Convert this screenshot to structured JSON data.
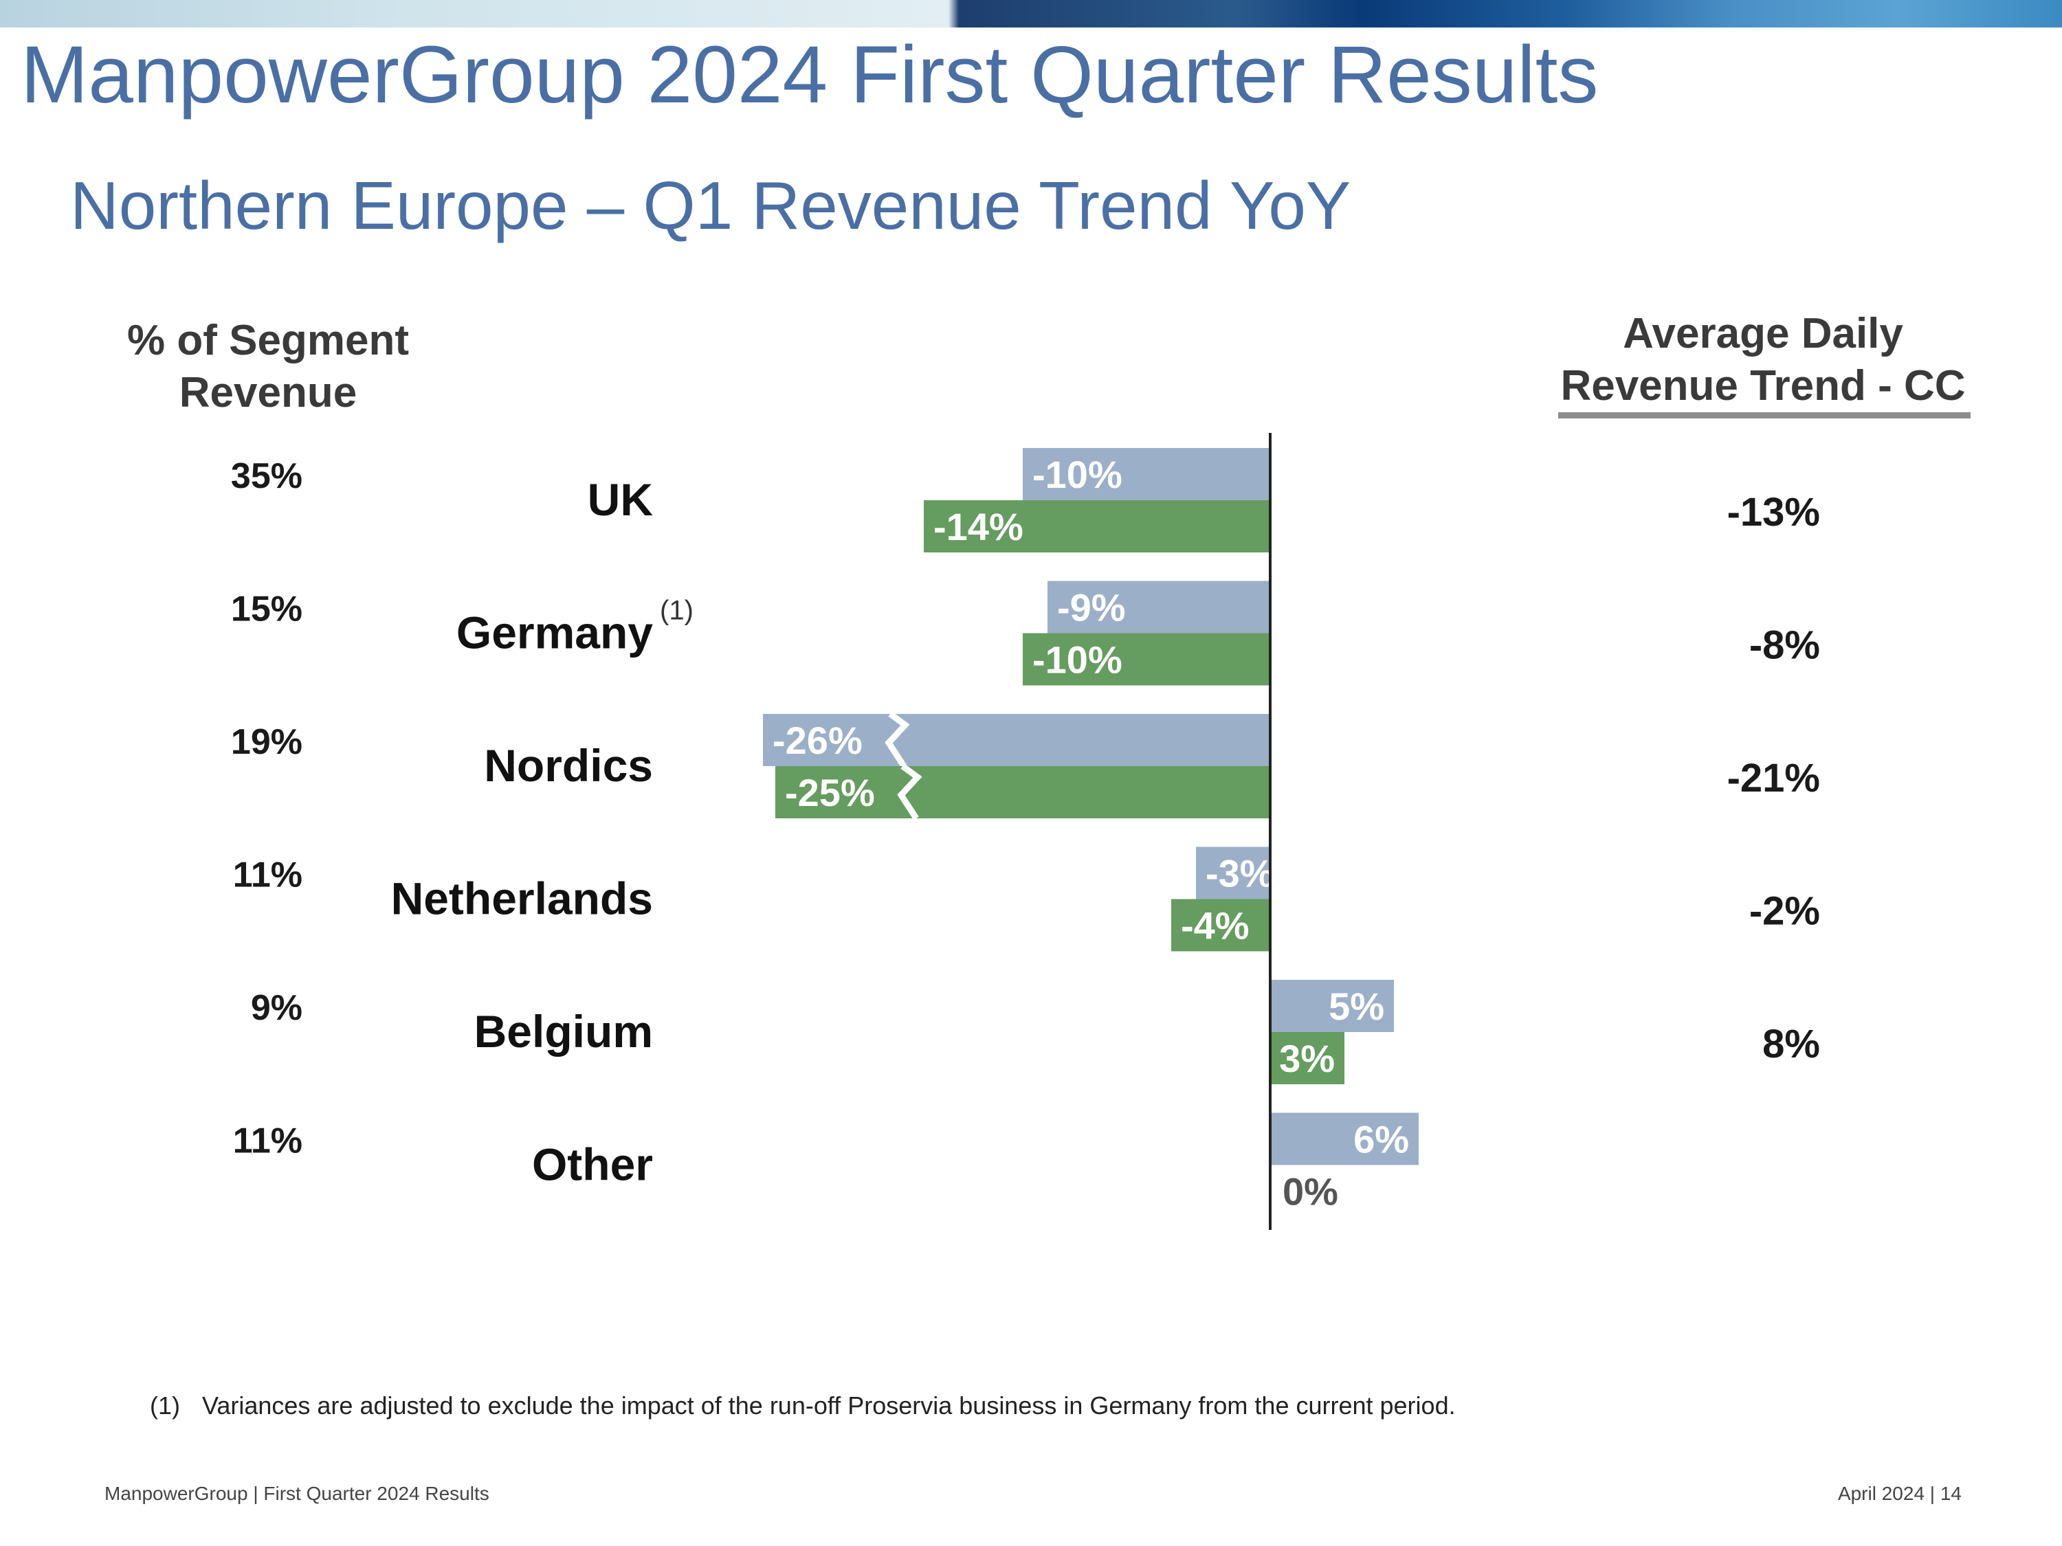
{
  "header": {
    "title": "ManpowerGroup 2024 First Quarter Results",
    "subtitle": "Northern Europe – Q1 Revenue Trend YoY"
  },
  "columns": {
    "left_header": "% of Segment Revenue",
    "right_header_line1": "Average Daily",
    "right_header_line2": "Revenue Trend - CC"
  },
  "chart_data": {
    "type": "bar",
    "orientation": "horizontal",
    "categories": [
      "UK",
      "Germany",
      "Nordics",
      "Netherlands",
      "Belgium",
      "Other"
    ],
    "category_footnotes": [
      "",
      "(1)",
      "",
      "",
      "",
      ""
    ],
    "segment_share": [
      "35%",
      "15%",
      "19%",
      "11%",
      "9%",
      "11%"
    ],
    "series": [
      {
        "color": "#9bafc8",
        "values": [
          -10,
          -9,
          -26,
          -3,
          5,
          6
        ],
        "labels": [
          "-10%",
          "-9%",
          "-26%",
          "-3%",
          "5%",
          "6%"
        ]
      },
      {
        "color": "#659c5f",
        "values": [
          -14,
          -10,
          -25,
          -4,
          3,
          0
        ],
        "labels": [
          "-14%",
          "-10%",
          "-25%",
          "-4%",
          "3%",
          "0%"
        ]
      }
    ],
    "axis_break_categories": [
      "Nordics"
    ],
    "average_daily_trend_cc": [
      "-13%",
      "-8%",
      "-21%",
      "-2%",
      "8%",
      ""
    ]
  },
  "footnote": {
    "number": "(1)",
    "text": "Variances are adjusted to exclude the impact of the run-off Proservia business in Germany from the current period."
  },
  "footer": {
    "left": "ManpowerGroup  |  First Quarter 2024 Results",
    "right": "April 2024   |   14"
  }
}
